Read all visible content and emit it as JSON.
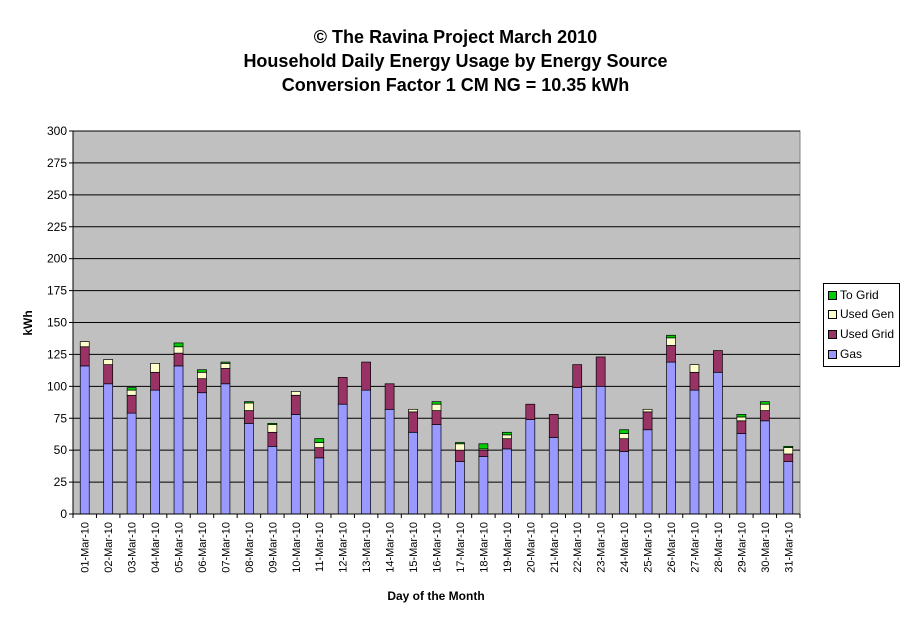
{
  "chart_data": {
    "type": "bar",
    "stacked": true,
    "title_lines": [
      "© The Ravina Project March 2010",
      "Household Daily Energy Usage by Energy Source",
      "Conversion Factor 1 CM NG = 10.35 kWh"
    ],
    "xlabel": "Day of the Month",
    "ylabel": "kWh",
    "ylim": [
      0,
      300
    ],
    "yticks": [
      0,
      25,
      50,
      75,
      100,
      125,
      150,
      175,
      200,
      225,
      250,
      275,
      300
    ],
    "grid": true,
    "legend_position": "right",
    "categories": [
      "01-Mar-10",
      "02-Mar-10",
      "03-Mar-10",
      "04-Mar-10",
      "05-Mar-10",
      "06-Mar-10",
      "07-Mar-10",
      "08-Mar-10",
      "09-Mar-10",
      "10-Mar-10",
      "11-Mar-10",
      "12-Mar-10",
      "13-Mar-10",
      "14-Mar-10",
      "15-Mar-10",
      "16-Mar-10",
      "17-Mar-10",
      "18-Mar-10",
      "19-Mar-10",
      "20-Mar-10",
      "21-Mar-10",
      "22-Mar-10",
      "23-Mar-10",
      "24-Mar-10",
      "25-Mar-10",
      "26-Mar-10",
      "27-Mar-10",
      "28-Mar-10",
      "29-Mar-10",
      "30-Mar-10",
      "31-Mar-10"
    ],
    "series": [
      {
        "name": "Gas",
        "color": "#9999ff",
        "values": [
          116,
          102,
          79,
          97,
          116,
          95,
          102,
          71,
          53,
          78,
          44,
          86,
          97,
          82,
          64,
          70,
          41,
          45,
          51,
          74,
          60,
          99,
          100,
          49,
          66,
          119,
          97,
          111,
          63,
          73,
          41
        ]
      },
      {
        "name": "Used Grid",
        "color": "#993366",
        "values": [
          15,
          15,
          14,
          14,
          10,
          11,
          12,
          10,
          11,
          15,
          8,
          21,
          22,
          20,
          16,
          11,
          9,
          5,
          8,
          12,
          18,
          18,
          23,
          10,
          14,
          13,
          14,
          17,
          10,
          8,
          6
        ]
      },
      {
        "name": "Used Gen",
        "color": "#ffffcc",
        "values": [
          4,
          4,
          4,
          7,
          5,
          5,
          4,
          6,
          6,
          3,
          4,
          0,
          0,
          0,
          2,
          5,
          5,
          1,
          3,
          0,
          0,
          0,
          0,
          4,
          2,
          6,
          6,
          0,
          3,
          5,
          5
        ]
      },
      {
        "name": "To Grid",
        "color": "#00cc00",
        "values": [
          0,
          0,
          2,
          0,
          3,
          2,
          1,
          1,
          1,
          0,
          3,
          0,
          0,
          0,
          0,
          2,
          1,
          4,
          2,
          0,
          0,
          0,
          0,
          3,
          0,
          2,
          0,
          0,
          2,
          2,
          1
        ]
      }
    ],
    "background_color": "#c0c0c0"
  }
}
